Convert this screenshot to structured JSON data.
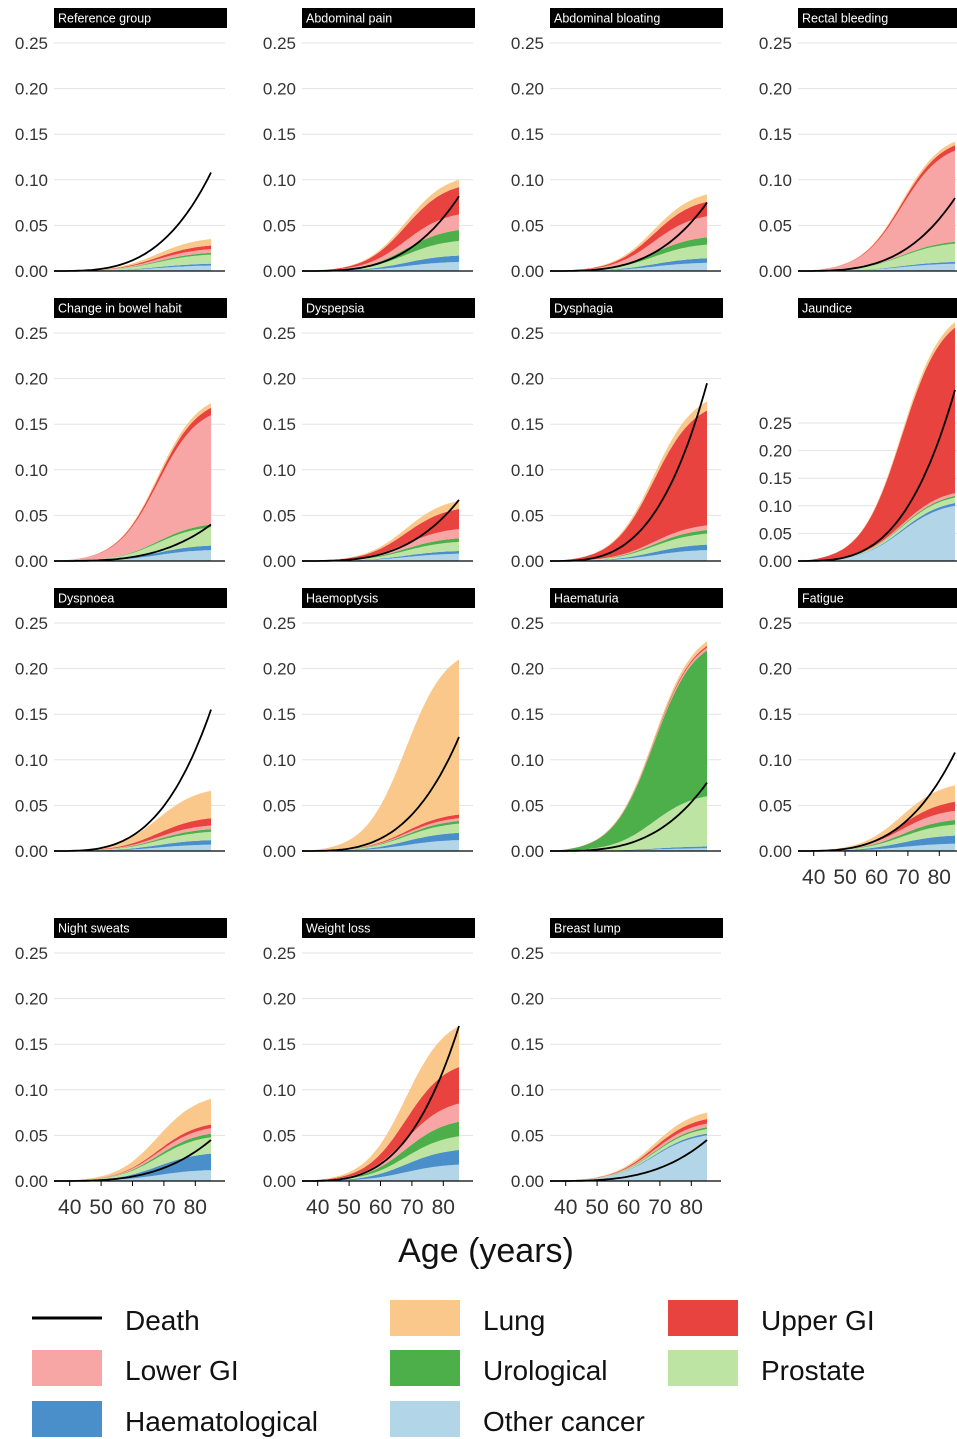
{
  "chart_data": {
    "type": "area",
    "xlabel": "Age (years)",
    "x_ticks": [
      40,
      50,
      60,
      70,
      80
    ],
    "y_ticks": [
      "0.00",
      "0.05",
      "0.10",
      "0.15",
      "0.20",
      "0.25"
    ],
    "ylim": [
      0,
      0.25
    ],
    "ages": [
      35,
      40,
      45,
      50,
      55,
      60,
      65,
      70,
      75,
      80,
      85
    ],
    "series": [
      {
        "key": "death",
        "name": "Death",
        "kind": "line",
        "color": "#000000"
      },
      {
        "key": "lung",
        "name": "Lung",
        "kind": "area",
        "color": "#F9C88A"
      },
      {
        "key": "upper_gi",
        "name": "Upper GI",
        "kind": "area",
        "color": "#E8433F"
      },
      {
        "key": "lower_gi",
        "name": "Lower GI",
        "kind": "area",
        "color": "#F7A5A5"
      },
      {
        "key": "urological",
        "name": "Urological",
        "kind": "area",
        "color": "#4DAF4A"
      },
      {
        "key": "prostate",
        "name": "Prostate",
        "kind": "area",
        "color": "#BDE4A2"
      },
      {
        "key": "haematological",
        "name": "Haematological",
        "kind": "area",
        "color": "#4A8FCA"
      },
      {
        "key": "other_cancer",
        "name": "Other cancer",
        "kind": "area",
        "color": "#B3D5E8"
      }
    ],
    "stack_order_bottom_to_top": [
      "other_cancer",
      "haematological",
      "prostate",
      "urological",
      "lower_gi",
      "upper_gi",
      "lung"
    ],
    "legend_order": [
      "death",
      "lung",
      "upper_gi",
      "lower_gi",
      "urological",
      "prostate",
      "haematological",
      "other_cancer"
    ],
    "panels": [
      {
        "title": "Reference group",
        "totals": {
          "other_cancer": 0.006,
          "haematological": 0.002,
          "prostate": 0.01,
          "urological": 0.002,
          "lower_gi": 0.004,
          "upper_gi": 0.004,
          "lung": 0.007
        },
        "death_end": 0.108
      },
      {
        "title": "Abdominal pain",
        "totals": {
          "other_cancer": 0.01,
          "haematological": 0.007,
          "prostate": 0.016,
          "urological": 0.012,
          "lower_gi": 0.017,
          "upper_gi": 0.03,
          "lung": 0.008
        },
        "death_end": 0.082
      },
      {
        "title": "Abdominal bloating",
        "totals": {
          "other_cancer": 0.009,
          "haematological": 0.005,
          "prostate": 0.015,
          "urological": 0.008,
          "lower_gi": 0.023,
          "upper_gi": 0.016,
          "lung": 0.008
        },
        "death_end": 0.075
      },
      {
        "title": "Rectal bleeding",
        "totals": {
          "other_cancer": 0.008,
          "haematological": 0.002,
          "prostate": 0.02,
          "urological": 0.002,
          "lower_gi": 0.1,
          "upper_gi": 0.006,
          "lung": 0.004
        },
        "death_end": 0.08
      },
      {
        "title": "Change in bowel habit",
        "totals": {
          "other_cancer": 0.012,
          "haematological": 0.005,
          "prostate": 0.02,
          "urological": 0.003,
          "lower_gi": 0.12,
          "upper_gi": 0.008,
          "lung": 0.005
        },
        "death_end": 0.04
      },
      {
        "title": "Dyspepsia",
        "totals": {
          "other_cancer": 0.008,
          "haematological": 0.003,
          "prostate": 0.01,
          "urological": 0.004,
          "lower_gi": 0.01,
          "upper_gi": 0.022,
          "lung": 0.009
        },
        "death_end": 0.067
      },
      {
        "title": "Dysphagia",
        "totals": {
          "other_cancer": 0.012,
          "haematological": 0.006,
          "prostate": 0.012,
          "urological": 0.004,
          "lower_gi": 0.005,
          "upper_gi": 0.126,
          "lung": 0.01
        },
        "death_end": 0.195
      },
      {
        "title": "Jaundice",
        "totals": {
          "other_cancer": 0.1,
          "haematological": 0.005,
          "prostate": 0.01,
          "urological": 0.003,
          "lower_gi": 0.005,
          "upper_gi": 0.3,
          "lung": 0.01
        },
        "death_end": 0.31
      },
      {
        "title": "Dyspnoea",
        "totals": {
          "other_cancer": 0.007,
          "haematological": 0.005,
          "prostate": 0.009,
          "urological": 0.003,
          "lower_gi": 0.004,
          "upper_gi": 0.008,
          "lung": 0.03
        },
        "death_end": 0.155
      },
      {
        "title": "Haemoptysis",
        "totals": {
          "other_cancer": 0.012,
          "haematological": 0.008,
          "prostate": 0.01,
          "urological": 0.003,
          "lower_gi": 0.003,
          "upper_gi": 0.004,
          "lung": 0.17
        },
        "death_end": 0.125
      },
      {
        "title": "Haematuria",
        "totals": {
          "other_cancer": 0.003,
          "haematological": 0.002,
          "prostate": 0.055,
          "urological": 0.16,
          "lower_gi": 0.003,
          "upper_gi": 0.002,
          "lung": 0.005
        },
        "death_end": 0.075
      },
      {
        "title": "Fatigue",
        "totals": {
          "other_cancer": 0.008,
          "haematological": 0.009,
          "prostate": 0.012,
          "urological": 0.005,
          "lower_gi": 0.01,
          "upper_gi": 0.01,
          "lung": 0.018
        },
        "death_end": 0.108
      },
      {
        "title": "Night sweats",
        "totals": {
          "other_cancer": 0.012,
          "haematological": 0.018,
          "prostate": 0.018,
          "urological": 0.004,
          "lower_gi": 0.006,
          "upper_gi": 0.004,
          "lung": 0.028
        },
        "death_end": 0.045
      },
      {
        "title": "Weight loss",
        "totals": {
          "other_cancer": 0.018,
          "haematological": 0.016,
          "prostate": 0.015,
          "urological": 0.016,
          "lower_gi": 0.02,
          "upper_gi": 0.04,
          "lung": 0.045
        },
        "death_end": 0.17
      },
      {
        "title": "Breast lump",
        "totals": {
          "other_cancer": 0.05,
          "haematological": 0.002,
          "prostate": 0.005,
          "urological": 0.002,
          "lower_gi": 0.004,
          "upper_gi": 0.005,
          "lung": 0.007
        },
        "death_end": 0.045
      }
    ],
    "jaundice_y_ticks": [
      "0.00",
      "0.05",
      "0.10",
      "0.15",
      "0.20",
      "0.25"
    ]
  }
}
